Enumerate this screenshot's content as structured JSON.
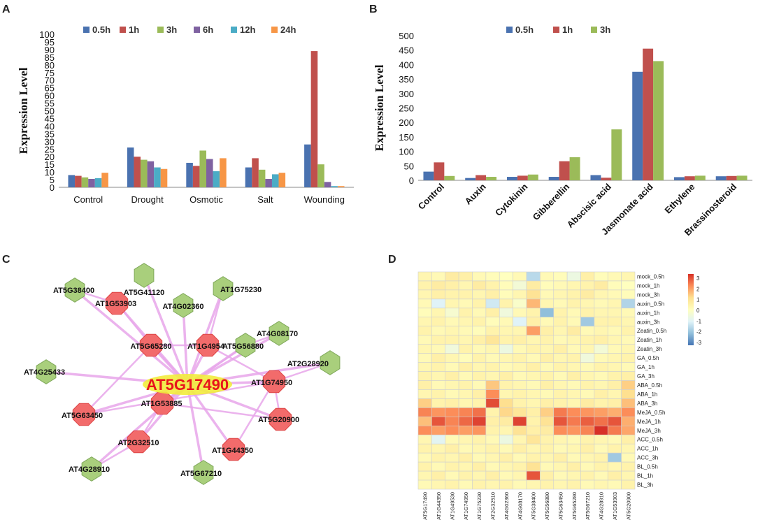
{
  "panels": {
    "a": "A",
    "b": "B",
    "c": "C",
    "d": "D"
  },
  "colors": {
    "blue": "#4a72b0",
    "red": "#c0504d",
    "green": "#9bbb59",
    "purple": "#7f62a1",
    "teal": "#4bacc6",
    "orange": "#f79646",
    "edge": "#e8a6ea",
    "node_red": "#f26b6b",
    "node_green": "#a9cf7c",
    "hub": "#f2ec3c",
    "hub_text": "#e8141b"
  },
  "chart_data": [
    {
      "type": "bar",
      "title": "",
      "xlabel": "",
      "ylabel": "Expression Level",
      "ylim": [
        0,
        100
      ],
      "yticks": [
        0,
        5,
        10,
        15,
        20,
        25,
        30,
        35,
        40,
        45,
        50,
        55,
        60,
        65,
        70,
        75,
        80,
        85,
        90,
        95,
        100
      ],
      "categories": [
        "Control",
        "Drought",
        "Osmotic",
        "Salt",
        "Wounding"
      ],
      "legend_position": "top",
      "series": [
        {
          "name": "0.5h",
          "color": "#4a72b0",
          "values": [
            8,
            26,
            16,
            13,
            28
          ]
        },
        {
          "name": "1h",
          "color": "#c0504d",
          "values": [
            7.5,
            20,
            14,
            19,
            89
          ]
        },
        {
          "name": "3h",
          "color": "#9bbb59",
          "values": [
            6.5,
            18,
            24,
            11.5,
            15
          ]
        },
        {
          "name": "6h",
          "color": "#7f62a1",
          "values": [
            5.5,
            17,
            18.5,
            5.5,
            3.5
          ]
        },
        {
          "name": "12h",
          "color": "#4bacc6",
          "values": [
            6,
            13,
            10.5,
            8.5,
            0.8
          ]
        },
        {
          "name": "24h",
          "color": "#f79646",
          "values": [
            9.5,
            12,
            19,
            9.5,
            0.8
          ]
        }
      ]
    },
    {
      "type": "bar",
      "title": "",
      "xlabel": "",
      "ylabel": "Expression Level",
      "ylim": [
        0,
        500
      ],
      "yticks": [
        0,
        50,
        100,
        150,
        200,
        250,
        300,
        350,
        400,
        450,
        500
      ],
      "categories": [
        "Control",
        "Auxin",
        "Cytokinin",
        "Gibberellin",
        "Abscisic acid",
        "Jasmonate acid",
        "Ethylene",
        "Brassinosteroid"
      ],
      "legend_position": "top",
      "series": [
        {
          "name": "0.5h",
          "color": "#4a72b0",
          "values": [
            30,
            8,
            12,
            12,
            18,
            375,
            11,
            14
          ]
        },
        {
          "name": "1h",
          "color": "#c0504d",
          "values": [
            62,
            18,
            16,
            66,
            9,
            455,
            14,
            15
          ]
        },
        {
          "name": "3h",
          "color": "#9bbb59",
          "values": [
            15,
            12,
            20,
            80,
            176,
            412,
            16,
            16
          ]
        }
      ]
    }
  ],
  "network": {
    "hub": "AT5G17490",
    "nodes": [
      {
        "id": "AT5G41120",
        "type": "green"
      },
      {
        "id": "AT5G38400",
        "type": "green"
      },
      {
        "id": "AT1G75230",
        "type": "green"
      },
      {
        "id": "AT4G02360",
        "type": "green"
      },
      {
        "id": "AT1G53903",
        "type": "red"
      },
      {
        "id": "AT4G08170",
        "type": "green"
      },
      {
        "id": "AT5G65280",
        "type": "red"
      },
      {
        "id": "AT1G49540",
        "type": "red"
      },
      {
        "id": "AT5G56880",
        "type": "green"
      },
      {
        "id": "AT2G28920",
        "type": "green"
      },
      {
        "id": "AT4G25433",
        "type": "green"
      },
      {
        "id": "AT1G74950",
        "type": "red"
      },
      {
        "id": "AT1G53885",
        "type": "red"
      },
      {
        "id": "AT5G63450",
        "type": "red"
      },
      {
        "id": "AT5G20900",
        "type": "red"
      },
      {
        "id": "AT2G32510",
        "type": "red"
      },
      {
        "id": "AT1G44350",
        "type": "red"
      },
      {
        "id": "AT4G28910",
        "type": "green"
      },
      {
        "id": "AT5G67210",
        "type": "green"
      }
    ],
    "label_overrides": {
      "AT1G49540": "AT1G4954",
      "AT5G56880": "AT5G56880"
    }
  },
  "heatmap": {
    "rows": [
      "mock_0.5h",
      "mock_1h",
      "mock_3h",
      "auxin_0.5h",
      "auxin_1h",
      "auxin_3h",
      "Zeatin_0.5h",
      "Zeatin_1h",
      "Zeatin_3h",
      "GA_0.5h",
      "GA_1h",
      "GA_3h",
      "ABA_0.5h",
      "ABA_1h",
      "ABA_3h",
      "MeJA_0.5h",
      "MeJA_1h",
      "MeJA_3h",
      "ACC_0.5h",
      "ACC_1h",
      "ACC_3h",
      "BL_0.5h",
      "BL_1h",
      "BL_3h"
    ],
    "cols": [
      "AT5G17490",
      "AT1G44350",
      "AT1G49530",
      "AT1G74950",
      "AT1G75230",
      "AT2G32510",
      "AT4G02360",
      "AT4G08170",
      "AT5G38400",
      "AT5G56880",
      "AT5G63450",
      "AT5G65280",
      "AT5G67210",
      "AT4G28910",
      "AT1G53903",
      "AT5G20900"
    ],
    "scale_ticks": [
      "3",
      "2",
      "1",
      "0",
      "-1",
      "-2",
      "-3"
    ],
    "values": [
      [
        0.3,
        0.2,
        0.6,
        0.5,
        0.2,
        0.1,
        0.0,
        0.2,
        -1.5,
        0.2,
        0.1,
        -0.6,
        0.5,
        0.1,
        0.2,
        0.3
      ],
      [
        0.4,
        0.6,
        0.5,
        0.3,
        0.6,
        0.4,
        0.1,
        -0.4,
        0.6,
        0.1,
        0.2,
        0.3,
        0.4,
        0.6,
        0.1,
        0.0
      ],
      [
        0.3,
        0.5,
        0.4,
        0.4,
        0.3,
        0.5,
        0.1,
        0.3,
        0.9,
        0.2,
        0.3,
        0.4,
        0.6,
        0.3,
        0.2,
        0.1
      ],
      [
        0.2,
        -1.0,
        0.3,
        0.2,
        0.4,
        -1.2,
        0.4,
        -0.2,
        1.5,
        0.3,
        0.2,
        0.4,
        0.3,
        0.2,
        0.3,
        -1.6
      ],
      [
        0.1,
        0.3,
        -0.3,
        0.4,
        0.2,
        0.5,
        -0.5,
        0.2,
        0.4,
        -2.0,
        0.4,
        0.2,
        0.4,
        0.3,
        0.3,
        0.2
      ],
      [
        0.3,
        0.4,
        0.2,
        0.3,
        0.4,
        0.1,
        0.2,
        -1.0,
        0.5,
        0.2,
        0.4,
        0.2,
        -1.8,
        0.4,
        0.4,
        0.3
      ],
      [
        0.4,
        0.2,
        0.3,
        0.2,
        0.1,
        0.4,
        0.3,
        0.3,
        1.8,
        0.5,
        0.3,
        0.6,
        0.2,
        0.3,
        0.2,
        0.4
      ],
      [
        0.2,
        0.4,
        0.4,
        0.3,
        0.5,
        0.8,
        0.4,
        0.5,
        0.3,
        0.4,
        0.2,
        0.3,
        0.4,
        0.5,
        0.3,
        0.2
      ],
      [
        0.3,
        0.2,
        -0.5,
        0.4,
        0.2,
        0.3,
        -0.6,
        0.2,
        0.4,
        0.3,
        0.5,
        0.2,
        0.3,
        -0.4,
        0.2,
        0.3
      ],
      [
        0.2,
        0.5,
        0.3,
        0.1,
        0.4,
        0.2,
        0.3,
        0.4,
        0.2,
        0.5,
        0.3,
        0.4,
        -0.5,
        0.2,
        0.3,
        0.4
      ],
      [
        0.3,
        0.4,
        0.2,
        0.5,
        0.3,
        0.4,
        0.2,
        0.3,
        0.5,
        0.2,
        0.4,
        0.3,
        0.2,
        0.4,
        0.3,
        0.2
      ],
      [
        0.4,
        0.3,
        0.5,
        0.2,
        0.4,
        0.3,
        0.5,
        0.2,
        0.3,
        0.4,
        0.2,
        0.5,
        0.3,
        0.2,
        0.4,
        0.5
      ],
      [
        0.5,
        0.2,
        0.3,
        0.4,
        0.2,
        1.3,
        0.4,
        0.3,
        0.2,
        0.5,
        0.3,
        0.2,
        0.4,
        0.3,
        0.5,
        1.2
      ],
      [
        0.3,
        0.4,
        0.2,
        0.3,
        0.5,
        2.0,
        0.3,
        0.4,
        0.3,
        0.2,
        0.4,
        0.3,
        0.2,
        0.5,
        0.3,
        1.0
      ],
      [
        1.2,
        0.4,
        0.5,
        0.3,
        0.4,
        2.7,
        1.0,
        0.4,
        0.3,
        0.5,
        0.4,
        0.3,
        0.6,
        0.4,
        0.5,
        1.4
      ],
      [
        2.1,
        1.9,
        2.0,
        2.1,
        2.3,
        0.4,
        1.1,
        0.8,
        0.5,
        1.2,
        2.2,
        2.0,
        1.9,
        1.8,
        1.6,
        2.0
      ],
      [
        1.4,
        2.6,
        2.1,
        2.4,
        2.8,
        0.5,
        0.6,
        2.8,
        0.4,
        0.9,
        2.6,
        2.2,
        2.5,
        2.3,
        2.6,
        1.6
      ],
      [
        2.0,
        1.8,
        2.0,
        1.8,
        1.9,
        0.4,
        0.3,
        0.9,
        0.5,
        0.6,
        2.0,
        1.9,
        2.1,
        3.0,
        2.2,
        1.7
      ],
      [
        0.3,
        -0.9,
        0.2,
        0.3,
        0.4,
        0.2,
        -0.6,
        0.3,
        0.8,
        0.4,
        0.3,
        0.2,
        0.4,
        0.3,
        0.2,
        0.5
      ],
      [
        0.4,
        0.3,
        0.5,
        0.2,
        0.3,
        0.4,
        0.2,
        0.5,
        0.3,
        0.4,
        0.2,
        0.3,
        0.5,
        0.2,
        0.4,
        0.3
      ],
      [
        0.2,
        0.4,
        0.3,
        0.5,
        0.2,
        0.3,
        0.5,
        0.2,
        0.4,
        0.3,
        0.5,
        0.2,
        0.3,
        0.4,
        -1.8,
        0.2
      ],
      [
        0.4,
        0.2,
        0.4,
        0.3,
        0.5,
        0.2,
        0.3,
        0.4,
        0.9,
        0.2,
        0.3,
        0.5,
        0.2,
        0.4,
        0.3,
        0.4
      ],
      [
        0.3,
        0.5,
        0.2,
        0.4,
        0.3,
        0.5,
        0.2,
        0.3,
        2.6,
        0.5,
        0.2,
        0.3,
        0.4,
        0.2,
        0.5,
        0.3
      ],
      [
        0.2,
        0.3,
        0.4,
        0.2,
        0.4,
        0.3,
        0.4,
        0.2,
        0.3,
        0.4,
        0.3,
        0.4,
        0.2,
        0.3,
        0.2,
        0.4
      ]
    ]
  }
}
